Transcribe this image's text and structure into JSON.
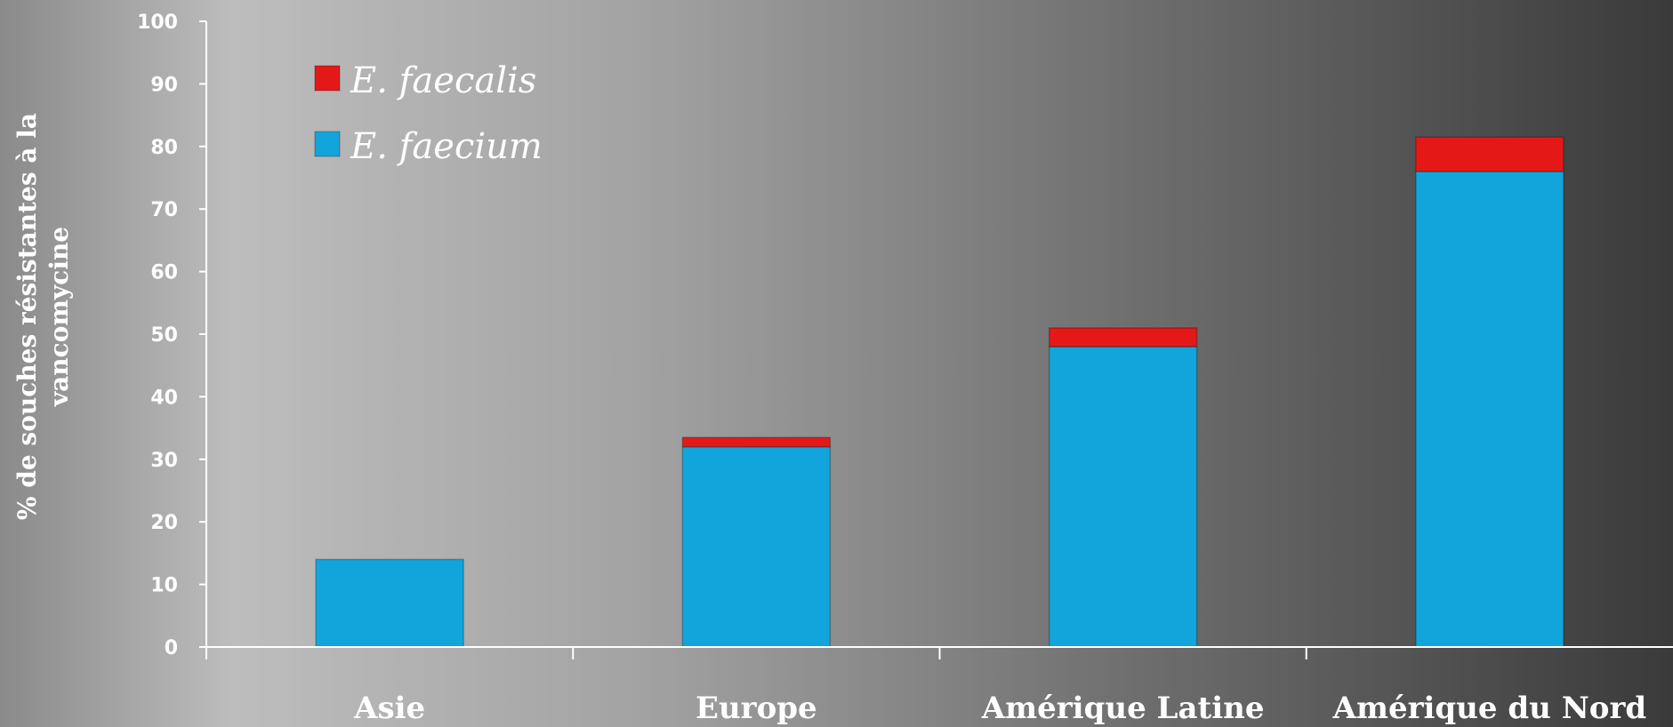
{
  "chart_data": {
    "type": "bar",
    "stacked": true,
    "categories": [
      "Asie",
      "Europe",
      "Amérique Latine",
      "Amérique du Nord"
    ],
    "series": [
      {
        "name": "E. faecium",
        "color": "#12a5dc",
        "values": [
          14,
          32,
          48,
          76
        ]
      },
      {
        "name": "E. faecalis",
        "color": "#e51818",
        "values": [
          0,
          1.5,
          3,
          5.5
        ]
      }
    ],
    "ylabel_lines": [
      "% de souches résistantes à la",
      "vancomycine"
    ],
    "ylim": [
      0,
      100
    ],
    "yticks": [
      0,
      10,
      20,
      30,
      40,
      50,
      60,
      70,
      80,
      90,
      100
    ],
    "legend_order": [
      "E. faecalis",
      "E. faecium"
    ],
    "legend_position": "top-left",
    "grid": false
  }
}
